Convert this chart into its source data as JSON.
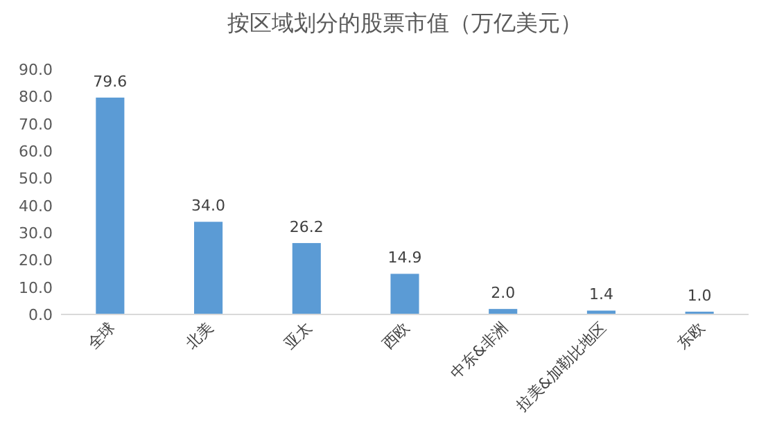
{
  "chart_data": {
    "type": "bar",
    "title": "按区域划分的股票市值（万亿美元）",
    "categories": [
      "全球",
      "北美",
      "亚太",
      "西欧",
      "中东&非洲",
      "拉美&加勒比地区",
      "东欧"
    ],
    "values": [
      79.6,
      34.0,
      26.2,
      14.9,
      2.0,
      1.4,
      1.0
    ],
    "value_labels": [
      "79.6",
      "34.0",
      "26.2",
      "14.9",
      "2.0",
      "1.4",
      "1.0"
    ],
    "color": "#5b9bd5",
    "ylim": [
      0,
      90
    ],
    "yticks": [
      {
        "value": 0,
        "label": "0.0"
      },
      {
        "value": 10,
        "label": "10.0"
      },
      {
        "value": 20,
        "label": "20.0"
      },
      {
        "value": 30,
        "label": "30.0"
      },
      {
        "value": 40,
        "label": "40.0"
      },
      {
        "value": 50,
        "label": "50.0"
      },
      {
        "value": 60,
        "label": "60.0"
      },
      {
        "value": 70,
        "label": "70.0"
      },
      {
        "value": 80,
        "label": "80.0"
      },
      {
        "value": 90,
        "label": "90.0"
      }
    ],
    "grid": false
  }
}
